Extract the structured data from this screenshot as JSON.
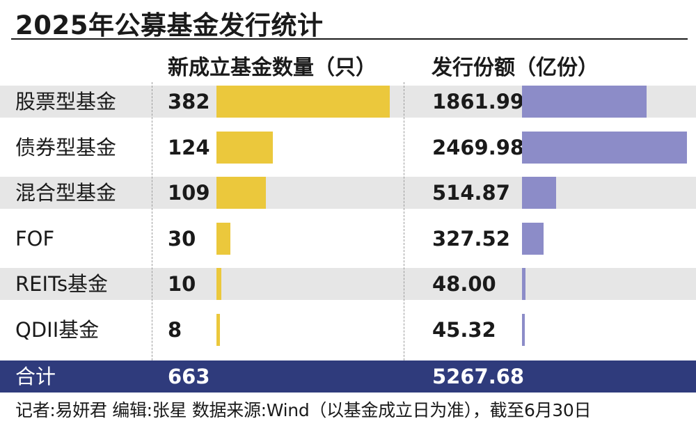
{
  "title": "2025年公募基金发行统计",
  "headers": {
    "count": "新成立基金数量（只）",
    "share": "发行份额（亿份）"
  },
  "colors": {
    "count_bar": "#ebc83c",
    "share_bar": "#8c8cc8",
    "total_bg": "#2f3b7c",
    "row_shade": "#e6e6e6"
  },
  "chart_data": {
    "type": "bar",
    "title": "2025年公募基金发行统计",
    "categories": [
      "股票型基金",
      "债券型基金",
      "混合型基金",
      "FOF",
      "REITs基金",
      "QDII基金"
    ],
    "series": [
      {
        "name": "新成立基金数量（只）",
        "values": [
          382,
          124,
          109,
          30,
          10,
          8
        ]
      },
      {
        "name": "发行份额（亿份）",
        "values": [
          1861.99,
          2469.98,
          514.87,
          327.52,
          48.0,
          45.32
        ]
      }
    ],
    "count_labels": [
      "382",
      "124",
      "109",
      "30",
      "10",
      "8"
    ],
    "share_labels": [
      "1861.99",
      "2469.98",
      "514.87",
      "327.52",
      "48.00",
      "45.32"
    ]
  },
  "total": {
    "label": "合计",
    "count": "663",
    "share": "5267.68"
  },
  "footer": "记者:易妍君  编辑:张星  数据来源:Wind（以基金成立日为准），截至6月30日"
}
